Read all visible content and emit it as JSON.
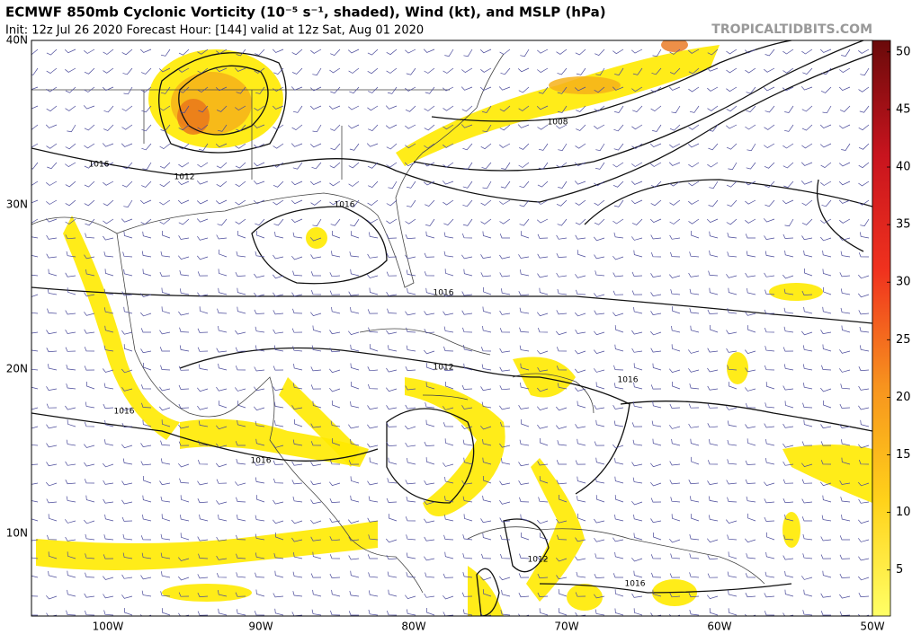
{
  "header": {
    "title": "ECMWF 850mb Cyclonic Vorticity (10⁻⁵ s⁻¹, shaded), Wind (kt), and MSLP (hPa)",
    "subtitle": "Init: 12z Jul 26 2020   Forecast Hour: [144]   valid at 12z Sat, Aug 01 2020",
    "watermark": "TROPICALTIDBITS.COM"
  },
  "map": {
    "lat_labels": [
      "40N",
      "30N",
      "20N",
      "10N"
    ],
    "lon_labels": [
      "100W",
      "90W",
      "80W",
      "70W",
      "60W",
      "50W"
    ],
    "isobar_labels": [
      "1016",
      "1012",
      "1008",
      "1016",
      "1016",
      "1012",
      "1016",
      "1016",
      "1016",
      "1012",
      "1016"
    ]
  },
  "colorbar": {
    "lim": [
      1,
      51
    ],
    "ticks": [
      5,
      10,
      15,
      20,
      25,
      30,
      35,
      40,
      45,
      50
    ]
  }
}
